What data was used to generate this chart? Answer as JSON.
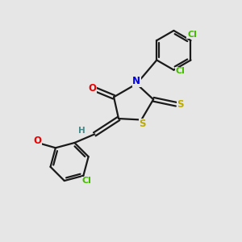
{
  "background_color": "#e6e6e6",
  "bond_color": "#1a1a1a",
  "atom_colors": {
    "N": "#0000ee",
    "O": "#ee0000",
    "S": "#bbaa00",
    "Cl": "#44bb00",
    "H": "#448888",
    "C": "#1a1a1a"
  },
  "figsize": [
    3.0,
    3.0
  ],
  "dpi": 100
}
